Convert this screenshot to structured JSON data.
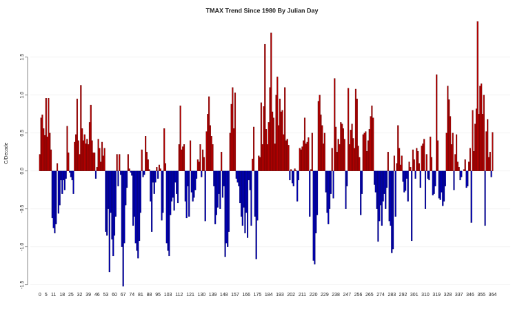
{
  "chart_data": {
    "type": "bar",
    "title": "TMAX Trend Since 1980 By Julian Day",
    "y_label": "C/Decade",
    "positive_color": "#b30000",
    "negative_color": "#0000b3",
    "edge_color": "#400000",
    "grid": true,
    "xlim": [
      -1,
      366
    ],
    "xticks": [
      0,
      5,
      11,
      18,
      25,
      32,
      39,
      46,
      53,
      60,
      67,
      74,
      81,
      88,
      95,
      103,
      112,
      121,
      130,
      139,
      148,
      157,
      166,
      175,
      184,
      193,
      202,
      211,
      220,
      229,
      238,
      247,
      256,
      265,
      274,
      283,
      292,
      301,
      310,
      319,
      328,
      337,
      346,
      355,
      364
    ],
    "ylim": [
      -1.53,
      1.98
    ],
    "yticks": [
      {
        "value": -1.5,
        "label": "-1.5"
      },
      {
        "value": -1.0,
        "label": "-1.0"
      },
      {
        "value": -0.5,
        "label": "-0.5"
      },
      {
        "value": 0.0,
        "label": "0.0"
      },
      {
        "value": 0.5,
        "label": "0.5"
      },
      {
        "value": 1.0,
        "label": "1.0"
      },
      {
        "value": 1.5,
        "label": "1.5"
      }
    ],
    "values": [
      0.22,
      0.7,
      0.74,
      0.56,
      0.47,
      0.96,
      0.45,
      0.96,
      0.5,
      0.28,
      -0.62,
      -0.75,
      -0.82,
      -0.7,
      0.1,
      -0.56,
      -0.45,
      -0.12,
      -0.3,
      -0.12,
      -0.25,
      -0.1,
      0.59,
      0.24,
      -0.02,
      -0.08,
      -0.12,
      -0.3,
      0.38,
      0.48,
      0.95,
      0.4,
      0.22,
      1.13,
      0.56,
      0.4,
      0.48,
      0.36,
      0.42,
      0.35,
      0.64,
      0.87,
      0.4,
      0.24,
      0.24,
      -0.1,
      0.05,
      0.42,
      0.3,
      0.12,
      0.38,
      0.2,
      0.3,
      -0.8,
      -0.85,
      -0.5,
      -1.33,
      -0.55,
      -0.9,
      -1.12,
      -0.85,
      -0.6,
      0.22,
      -0.2,
      0.22,
      -0.05,
      -1.0,
      -1.52,
      -0.95,
      -0.45,
      -0.22,
      0.22,
      0.03,
      -0.02,
      -0.06,
      -0.72,
      -0.6,
      -0.95,
      -1.05,
      -1.15,
      -0.92,
      -0.55,
      0.28,
      -0.08,
      -0.05,
      0.46,
      0.25,
      0.15,
      0.02,
      -0.4,
      -0.8,
      -0.15,
      -0.3,
      -0.15,
      0.05,
      -0.1,
      0.08,
      0.03,
      -0.65,
      -0.55,
      0.56,
      0.1,
      -0.95,
      -1.05,
      -1.12,
      -0.58,
      -0.4,
      -0.35,
      -0.52,
      -0.15,
      -0.3,
      -0.42,
      0.35,
      0.86,
      0.28,
      0.32,
      0.35,
      -0.4,
      -0.62,
      -0.2,
      -0.6,
      0.4,
      -0.28,
      -0.4,
      -0.35,
      -0.25,
      -0.1,
      0.15,
      0.12,
      0.35,
      -0.08,
      0.28,
      0.18,
      -0.66,
      0.52,
      0.75,
      0.98,
      0.6,
      0.46,
      0.35,
      -0.2,
      -0.7,
      -0.58,
      -0.48,
      -0.3,
      -0.5,
      0.25,
      -0.35,
      -0.2,
      -1.13,
      -0.95,
      -1.0,
      -0.8,
      0.5,
      0.88,
      1.1,
      0.56,
      1.03,
      -0.1,
      -0.15,
      -0.2,
      -0.42,
      -0.6,
      -0.72,
      -0.48,
      -0.82,
      -0.55,
      -0.88,
      -0.12,
      -0.25,
      -0.72,
      0.16,
      0.58,
      -0.6,
      -1.16,
      -0.65,
      0.2,
      0.18,
      0.9,
      0.35,
      0.85,
      1.67,
      0.55,
      0.35,
      0.64,
      1.1,
      1.82,
      0.78,
      0.7,
      0.36,
      1.0,
      1.24,
      0.6,
      0.95,
      0.78,
      0.8,
      0.48,
      1.1,
      0.4,
      0.42,
      0.34,
      -0.12,
      0.02,
      -0.16,
      -0.2,
      0.03,
      0.01,
      -0.4,
      -0.12,
      0.3,
      0.28,
      0.32,
      0.4,
      0.7,
      0.36,
      0.38,
      0.44,
      -0.6,
      0.02,
      0.5,
      -1.18,
      -1.23,
      -0.82,
      -0.58,
      0.92,
      1.0,
      0.74,
      0.6,
      0.36,
      0.5,
      -0.28,
      -0.55,
      -0.7,
      -0.5,
      -0.3,
      0.3,
      -0.36,
      1.22,
      0.58,
      0.25,
      0.42,
      0.35,
      0.64,
      0.62,
      0.56,
      0.42,
      -0.5,
      -0.2,
      1.09,
      0.35,
      0.54,
      0.62,
      0.43,
      0.3,
      1.08,
      0.95,
      0.33,
      0.18,
      -0.58,
      -0.3,
      0.48,
      0.5,
      0.52,
      0.26,
      0.4,
      0.55,
      0.72,
      0.86,
      0.7,
      -0.18,
      -0.28,
      -0.5,
      -0.93,
      -0.66,
      -0.45,
      -0.72,
      -0.4,
      -0.3,
      -0.5,
      -0.22,
      0.25,
      -0.66,
      -0.72,
      -1.08,
      -1.03,
      0.2,
      -0.6,
      0.1,
      0.6,
      0.3,
      0.08,
      0.2,
      -0.14,
      -0.28,
      -0.26,
      -0.1,
      -0.4,
      0.12,
      0.05,
      -0.92,
      0.28,
      0.15,
      -0.1,
      0.3,
      0.26,
      0.1,
      -0.22,
      0.33,
      0.36,
      0.42,
      -0.5,
      0.22,
      -0.1,
      -0.12,
      0.45,
      0.18,
      -0.32,
      -0.3,
      -0.2,
      1.27,
      0.4,
      -0.36,
      -0.38,
      -0.28,
      -0.46,
      -0.4,
      -0.2,
      0.5,
      1.12,
      0.94,
      0.72,
      0.35,
      0.5,
      -0.25,
      0.22,
      0.48,
      0.12,
      0.05,
      -0.12,
      -0.08,
      0.0,
      0.02,
      0.15,
      -0.22,
      -0.2,
      0.12,
      0.3,
      -0.68,
      0.8,
      0.26,
      0.62,
      0.82,
      1.97,
      0.75,
      1.12,
      1.15,
      0.75,
      1.0,
      -0.72,
      0.52,
      0.68,
      0.18,
      0.25,
      -0.08,
      0.51
    ]
  }
}
